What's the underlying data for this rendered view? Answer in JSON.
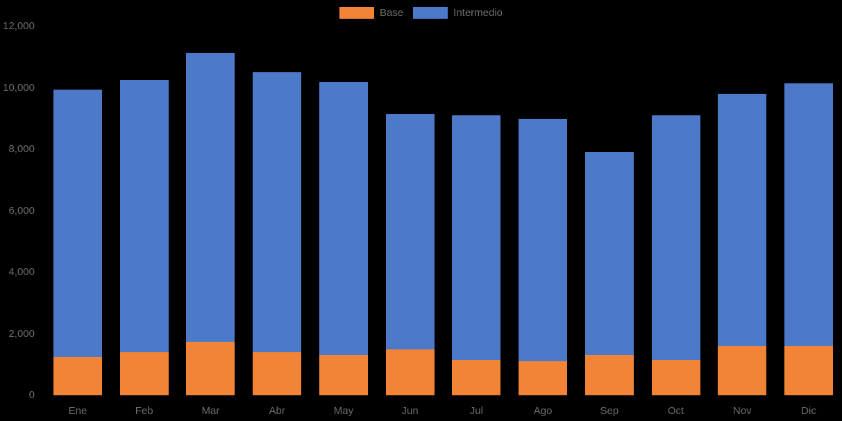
{
  "chart_data": {
    "type": "bar",
    "stacked": true,
    "title": "",
    "xlabel": "",
    "ylabel": "",
    "categories": [
      "Ene",
      "Feb",
      "Mar",
      "Abr",
      "May",
      "Jun",
      "Jul",
      "Ago",
      "Sep",
      "Oct",
      "Nov",
      "Dic"
    ],
    "series": [
      {
        "name": "Base",
        "color": "#F28438",
        "values": [
          1250,
          1400,
          1750,
          1400,
          1300,
          1500,
          1150,
          1100,
          1300,
          1150,
          1600,
          1600
        ]
      },
      {
        "name": "Intermedio",
        "color": "#4D79C9",
        "values": [
          8700,
          8850,
          9400,
          9100,
          8900,
          7650,
          7950,
          7900,
          6600,
          7950,
          8200,
          8550
        ]
      }
    ],
    "totals": [
      9950,
      10250,
      11150,
      10500,
      10200,
      9150,
      9100,
      9000,
      7900,
      9100,
      9800,
      10150
    ],
    "ylim": [
      0,
      12000
    ],
    "y_tick_values": [
      0,
      2000,
      4000,
      6000,
      8000,
      10000,
      12000
    ],
    "y_tick_labels": [
      "0",
      "2,000",
      "4,000",
      "6,000",
      "8,000",
      "10,000",
      "12,000"
    ],
    "legend_position": "top",
    "grid": false,
    "background": "#000000",
    "text_color": "#6E6E6E"
  }
}
